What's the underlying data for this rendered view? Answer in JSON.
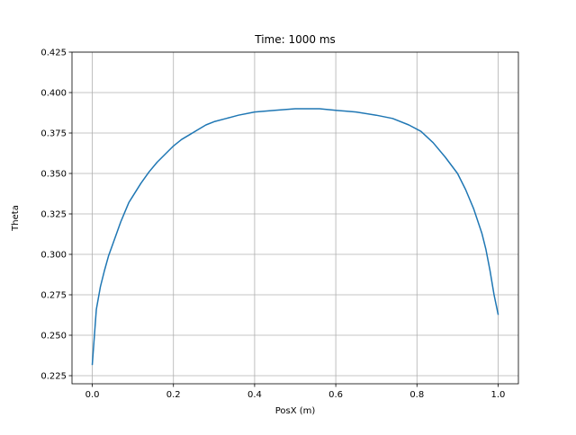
{
  "chart_data": {
    "type": "line",
    "title": "Time: 1000 ms",
    "xlabel": "PosX (m)",
    "ylabel": "Theta",
    "xlim": [
      -0.05,
      1.05
    ],
    "ylim": [
      0.22,
      0.425
    ],
    "grid": true,
    "legend": "none",
    "x_ticks": [
      {
        "value": 0.0,
        "label": "0.0"
      },
      {
        "value": 0.2,
        "label": "0.2"
      },
      {
        "value": 0.4,
        "label": "0.4"
      },
      {
        "value": 0.6,
        "label": "0.6"
      },
      {
        "value": 0.8,
        "label": "0.8"
      },
      {
        "value": 1.0,
        "label": "1.0"
      }
    ],
    "y_ticks": [
      {
        "value": 0.225,
        "label": "0.225"
      },
      {
        "value": 0.25,
        "label": "0.250"
      },
      {
        "value": 0.275,
        "label": "0.275"
      },
      {
        "value": 0.3,
        "label": "0.300"
      },
      {
        "value": 0.325,
        "label": "0.325"
      },
      {
        "value": 0.35,
        "label": "0.350"
      },
      {
        "value": 0.375,
        "label": "0.375"
      },
      {
        "value": 0.4,
        "label": "0.400"
      },
      {
        "value": 0.425,
        "label": "0.425"
      }
    ],
    "series": [
      {
        "color": "#1f77b4",
        "x": [
          0.0,
          0.01,
          0.02,
          0.03,
          0.04,
          0.05,
          0.06,
          0.07,
          0.08,
          0.09,
          0.1,
          0.12,
          0.14,
          0.16,
          0.18,
          0.2,
          0.22,
          0.24,
          0.26,
          0.28,
          0.3,
          0.33,
          0.36,
          0.4,
          0.45,
          0.5,
          0.53,
          0.56,
          0.6,
          0.65,
          0.7,
          0.74,
          0.78,
          0.81,
          0.84,
          0.87,
          0.9,
          0.92,
          0.94,
          0.96,
          0.97,
          0.98,
          0.99,
          1.0
        ],
        "y": [
          0.232,
          0.266,
          0.28,
          0.29,
          0.299,
          0.306,
          0.313,
          0.32,
          0.326,
          0.332,
          0.336,
          0.344,
          0.351,
          0.357,
          0.362,
          0.367,
          0.371,
          0.374,
          0.377,
          0.38,
          0.382,
          0.384,
          0.386,
          0.388,
          0.389,
          0.39,
          0.39,
          0.39,
          0.389,
          0.388,
          0.386,
          0.384,
          0.38,
          0.376,
          0.369,
          0.36,
          0.35,
          0.34,
          0.328,
          0.313,
          0.303,
          0.29,
          0.275,
          0.263
        ]
      }
    ]
  }
}
